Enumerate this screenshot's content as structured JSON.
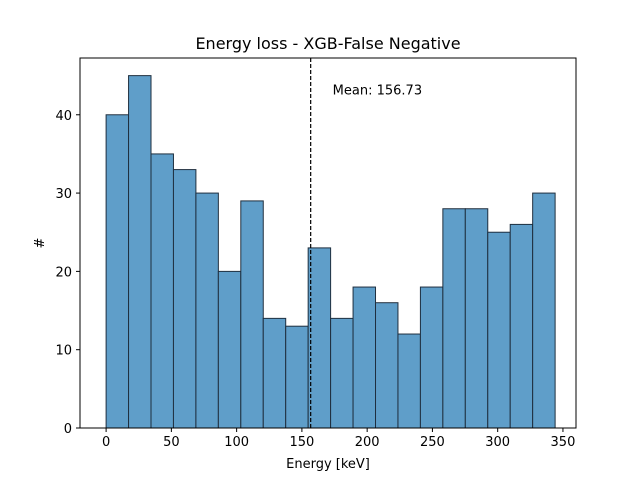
{
  "chart_data": {
    "type": "bar",
    "title": "Energy loss - XGB-False Negative",
    "xlabel": "Energy [keV]",
    "ylabel": "#",
    "xlim": [
      -20,
      360
    ],
    "ylim": [
      0,
      47.25
    ],
    "xticks": [
      0,
      50,
      100,
      150,
      200,
      250,
      300,
      350
    ],
    "yticks": [
      0,
      10,
      20,
      30,
      40
    ],
    "bin_edges": [
      0,
      17.2,
      34.4,
      51.6,
      68.8,
      86,
      103.2,
      120.4,
      137.6,
      154.8,
      172,
      189.2,
      206.4,
      223.6,
      240.8,
      258,
      275.2,
      292.4,
      309.6,
      326.8,
      344
    ],
    "values": [
      40,
      45,
      35,
      33,
      30,
      20,
      29,
      14,
      13,
      23,
      14,
      18,
      16,
      12,
      18,
      28,
      28,
      25,
      26,
      30
    ],
    "mean_line": {
      "x": 156.73,
      "label": "Mean: 156.73"
    },
    "bar_color": "#5f9ec9",
    "edge_color": "#1f2f3f",
    "grid": false,
    "legend": "none"
  }
}
